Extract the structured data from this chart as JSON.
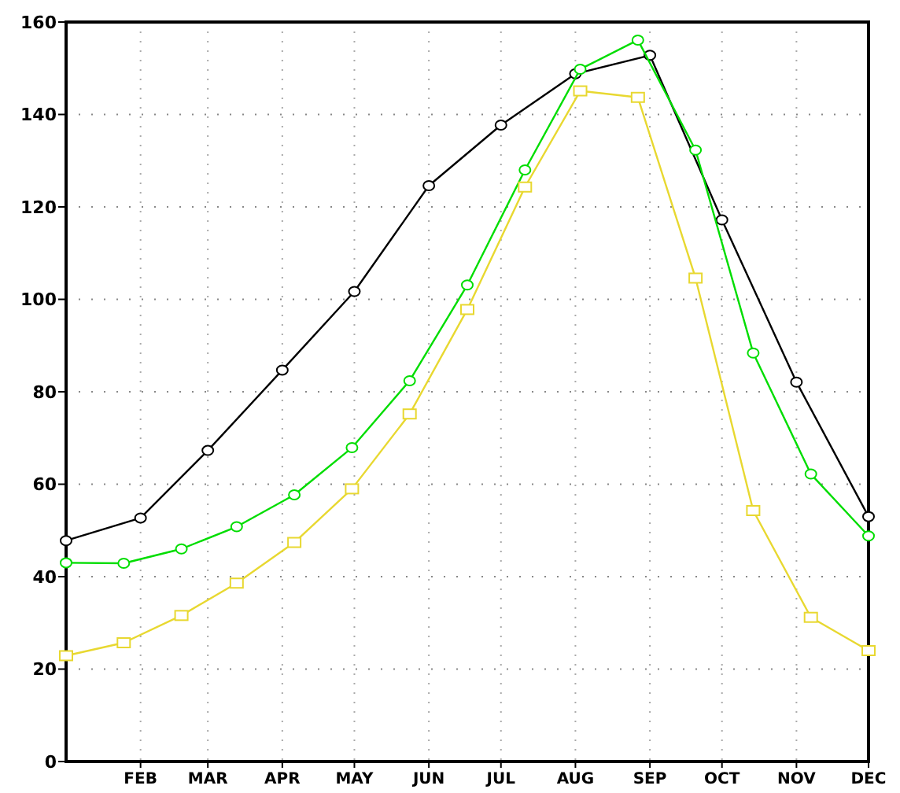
{
  "chart_data": {
    "type": "line",
    "xlim": [
      "--01-01",
      "--12-01"
    ],
    "ylim": [
      0,
      160
    ],
    "xticks": [
      {
        "value": "--02-01",
        "label": "FEB"
      },
      {
        "value": "--03-01",
        "label": "MAR"
      },
      {
        "value": "--04-01",
        "label": "APR"
      },
      {
        "value": "--05-01",
        "label": "MAY"
      },
      {
        "value": "--06-01",
        "label": "JUN"
      },
      {
        "value": "--07-01",
        "label": "JUL"
      },
      {
        "value": "--08-01",
        "label": "AUG"
      },
      {
        "value": "--09-01",
        "label": "SEP"
      },
      {
        "value": "--10-01",
        "label": "OCT"
      },
      {
        "value": "--11-01",
        "label": "NOV"
      },
      {
        "value": "--12-01",
        "label": "DEC"
      }
    ],
    "yticks": [
      0,
      20,
      40,
      60,
      80,
      100,
      120,
      140,
      160
    ],
    "grid": true,
    "line_style": "solid",
    "series": [
      {
        "color": "#000000",
        "marker": "circle",
        "x": [
          "--01-01",
          "--02-01",
          "--03-01",
          "--04-01",
          "--05-01",
          "--06-01",
          "--07-01",
          "--08-01",
          "--09-01",
          "--10-01",
          "--11-01",
          "--12-01"
        ],
        "values": [
          47.8,
          52.7,
          67.3,
          84.7,
          101.7,
          124.6,
          137.7,
          148.8,
          152.8,
          117.2,
          82.1,
          53
        ]
      },
      {
        "color": "#00dd00",
        "marker": "circle",
        "x": [
          "--01-01",
          "--01-25",
          "--02-18",
          "--03-13",
          "--04-06",
          "--04-30",
          "--05-24",
          "--06-17",
          "--07-11",
          "--08-03",
          "--08-27",
          "--09-20",
          "--10-14",
          "--11-07",
          "--12-01"
        ],
        "values": [
          43,
          42.9,
          46,
          50.8,
          57.7,
          67.9,
          82.4,
          103.1,
          128,
          149.8,
          156.1,
          132.3,
          88.4,
          62.2,
          48.8
        ]
      },
      {
        "color": "#e8d830",
        "marker": "square",
        "x": [
          "--01-01",
          "--01-25",
          "--02-18",
          "--03-13",
          "--04-06",
          "--04-30",
          "--05-24",
          "--06-17",
          "--07-11",
          "--08-03",
          "--08-27",
          "--09-20",
          "--10-14",
          "--11-07",
          "--12-01"
        ],
        "values": [
          22.9,
          25.7,
          31.6,
          38.6,
          47.4,
          59,
          75.2,
          97.8,
          124.3,
          145.1,
          143.7,
          104.6,
          54.3,
          31.2,
          24
        ]
      }
    ]
  }
}
